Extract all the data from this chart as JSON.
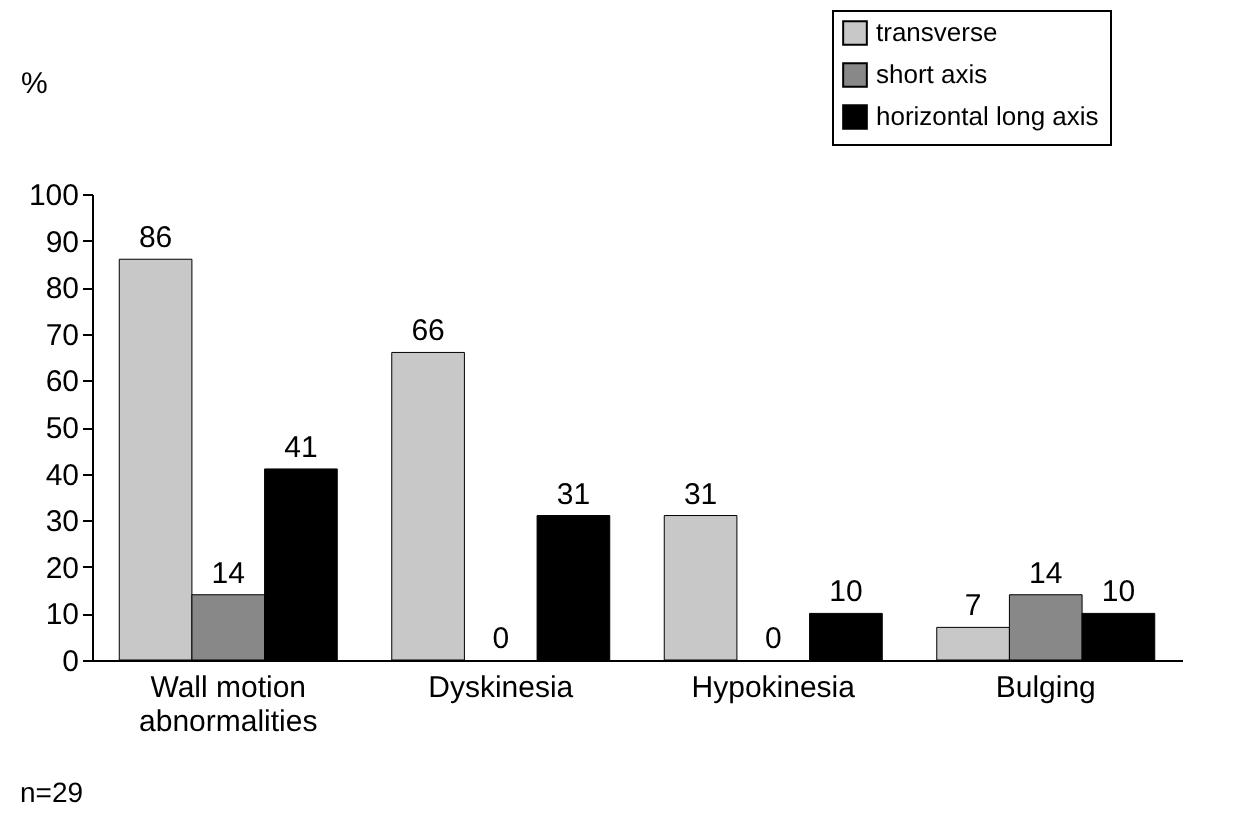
{
  "chart_data": {
    "type": "bar",
    "ylabel": "%",
    "categories": [
      "Wall motion abnormalities",
      "Dyskinesia",
      "Hypokinesia",
      "Bulging"
    ],
    "series": [
      {
        "name": "transverse",
        "color": "#c8c8c8",
        "values": [
          86,
          66,
          31,
          7
        ]
      },
      {
        "name": "short axis",
        "color": "#888888",
        "values": [
          14,
          0,
          0,
          14
        ]
      },
      {
        "name": "horizontal long axis",
        "color": "#000000",
        "values": [
          41,
          31,
          10,
          10
        ]
      }
    ],
    "ylim": [
      0,
      100
    ],
    "yticks": [
      0,
      10,
      20,
      30,
      40,
      50,
      60,
      70,
      80,
      90,
      100
    ],
    "data_labels": true,
    "grid": false,
    "legend": "top right",
    "annotations": [
      "n=29"
    ]
  }
}
